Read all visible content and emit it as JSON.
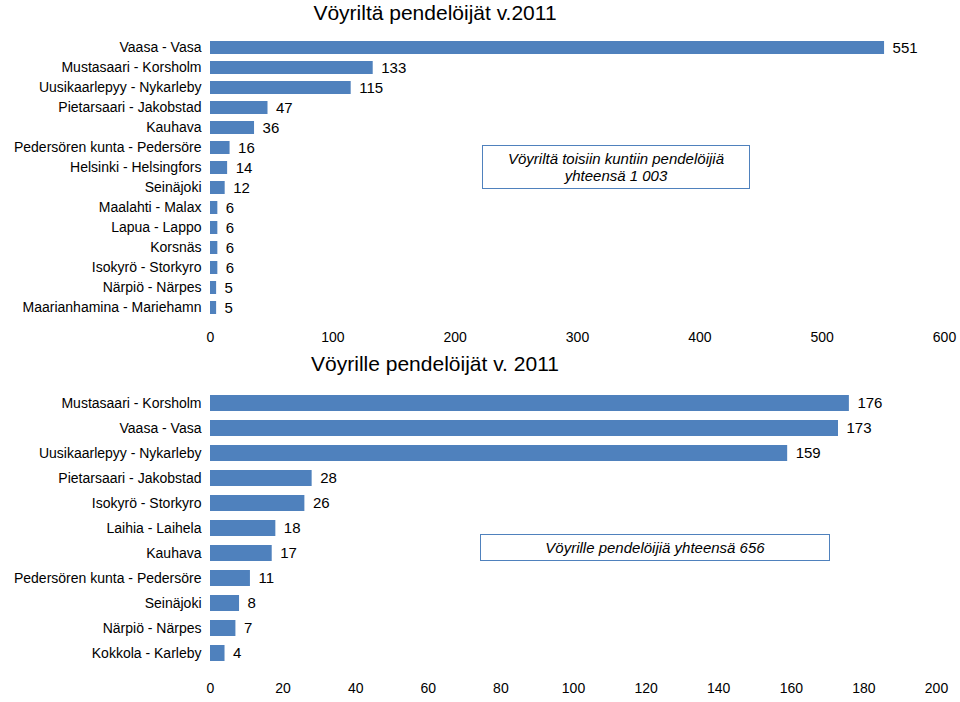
{
  "chart_data": [
    {
      "type": "bar",
      "orientation": "horizontal",
      "title": "Vöyriltä pendelöijät v.2011",
      "annotation": "Vöyriltä toisiin kuntiin pendelöijiä yhteensä 1 003",
      "categories": [
        "Vaasa - Vasa",
        "Mustasaari - Korsholm",
        "Uusikaarlepyy - Nykarleby",
        "Pietarsaari - Jakobstad",
        "Kauhava",
        "Pedersören kunta - Pedersöre",
        "Helsinki - Helsingfors",
        "Seinäjoki",
        "Maalahti - Malax",
        "Lapua - Lappo",
        "Korsnäs",
        "Isokyrö - Storkyro",
        "Närpiö - Närpes",
        "Maarianhamina - Mariehamn"
      ],
      "values": [
        551,
        133,
        115,
        47,
        36,
        16,
        14,
        12,
        6,
        6,
        6,
        6,
        5,
        5
      ],
      "color": "#4f81bd",
      "xlim": [
        0,
        600
      ],
      "xticks": [
        0,
        100,
        200,
        300,
        400,
        500,
        600
      ],
      "data_labels": true,
      "grid": false
    },
    {
      "type": "bar",
      "orientation": "horizontal",
      "title": "Vöyrille pendelöijät v. 2011",
      "annotation": "Vöyrille pendelöijiä yhteensä 656",
      "categories": [
        "Mustasaari - Korsholm",
        "Vaasa - Vasa",
        "Uusikaarlepyy - Nykarleby",
        "Pietarsaari - Jakobstad",
        "Isokyrö - Storkyro",
        "Laihia - Laihela",
        "Kauhava",
        "Pedersören kunta - Pedersöre",
        "Seinäjoki",
        "Närpiö - Närpes",
        "Kokkola - Karleby"
      ],
      "values": [
        176,
        173,
        159,
        28,
        26,
        18,
        17,
        11,
        8,
        7,
        4
      ],
      "color": "#4f81bd",
      "xlim": [
        0,
        200
      ],
      "xticks": [
        0,
        20,
        40,
        60,
        80,
        100,
        120,
        140,
        160,
        180,
        200
      ],
      "data_labels": true,
      "grid": false
    }
  ]
}
